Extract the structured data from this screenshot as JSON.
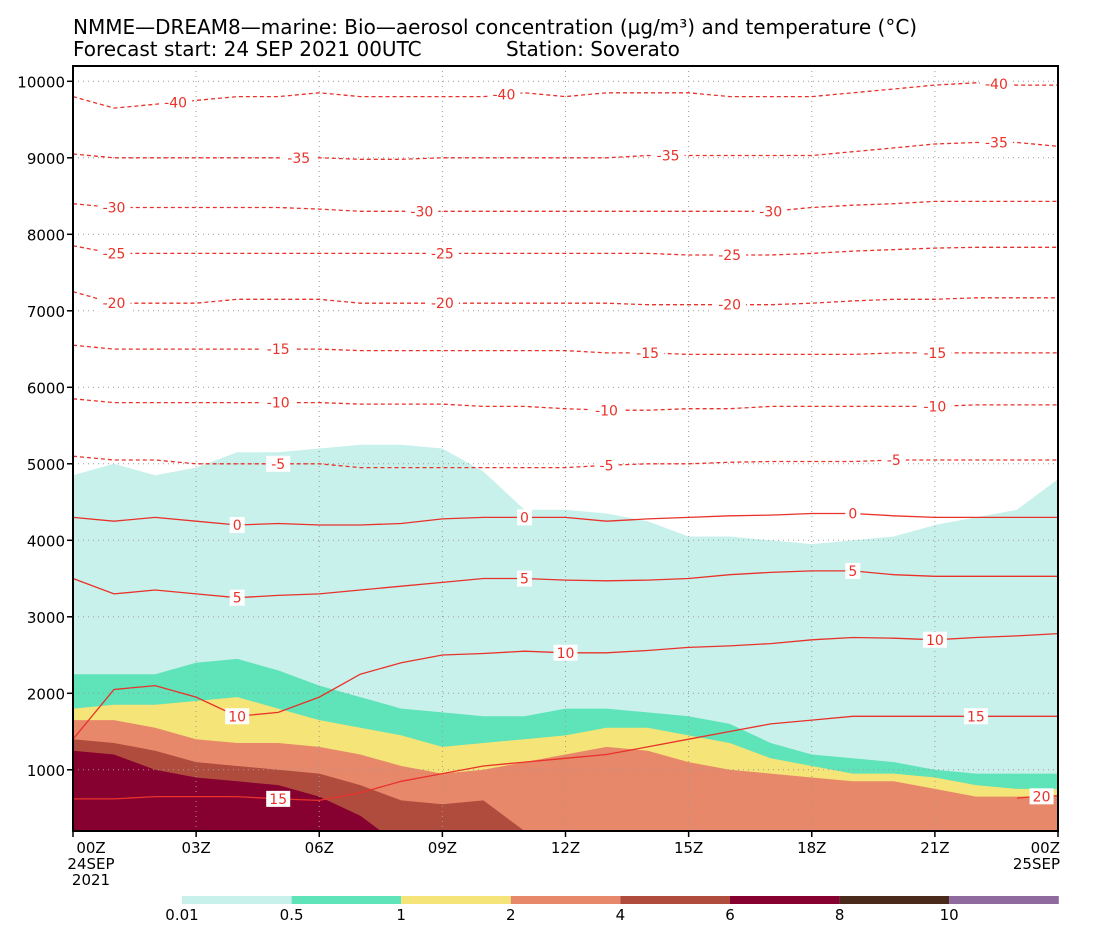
{
  "header": {
    "title_line1": "NMME—DREAM8—marine: Bio—aerosol concentration (µg/m³) and temperature (°C)",
    "title_line2_left": "Forecast start: 24 SEP 2021 00UTC",
    "title_line2_right": "Station: Soverato"
  },
  "colors": {
    "temperature_line": "#e8322a",
    "levels": [
      "#c8f1ec",
      "#5fe3b9",
      "#f5e477",
      "#e8886a",
      "#b04c3e",
      "#860030",
      "#4a2a1a",
      "#8f6a9e"
    ]
  },
  "chart_data": {
    "type": "area",
    "ylim": [
      200,
      10200
    ],
    "yticks": [
      1000,
      2000,
      3000,
      4000,
      5000,
      6000,
      7000,
      8000,
      9000,
      10000
    ],
    "ytick_labels": [
      "1000",
      "2000",
      "3000",
      "4000",
      "5000",
      "6000",
      "7000",
      "8000",
      "9000",
      "10000"
    ],
    "xlim": [
      0,
      24
    ],
    "xticks": [
      0,
      3,
      6,
      9,
      12,
      15,
      18,
      21,
      24
    ],
    "xtick_labels": [
      [
        "00Z",
        "24SEP",
        "2021"
      ],
      [
        "03Z"
      ],
      [
        "06Z"
      ],
      [
        "09Z"
      ],
      [
        "12Z"
      ],
      [
        "15Z"
      ],
      [
        "18Z"
      ],
      [
        "21Z"
      ],
      [
        "00Z",
        "25SEP"
      ]
    ],
    "grid": true,
    "legend": {
      "position": "bottom",
      "labels": [
        "0.01",
        "0.5",
        "1",
        "2",
        "4",
        "6",
        "8",
        "10"
      ],
      "values": [
        0.01,
        0.5,
        1,
        2,
        4,
        6,
        8,
        10
      ]
    },
    "concentration_top_heights_m": [
      {
        "level": 0.01,
        "x": [
          0,
          1,
          2,
          3,
          4,
          5,
          6,
          7,
          8,
          9,
          10,
          11,
          12,
          13,
          14,
          15,
          16,
          17,
          18,
          19,
          20,
          21,
          22,
          23,
          24
        ],
        "y": [
          4850,
          5000,
          4850,
          4950,
          5150,
          5150,
          5200,
          5250,
          5250,
          5200,
          4900,
          4400,
          4400,
          4350,
          4250,
          4050,
          4050,
          4000,
          3950,
          4000,
          4050,
          4200,
          4300,
          4400,
          4800
        ]
      },
      {
        "level": 0.5,
        "x": [
          0,
          1,
          2,
          3,
          4,
          5,
          6,
          7,
          8,
          9,
          10,
          11,
          12,
          13,
          14,
          15,
          16,
          17,
          18,
          19,
          20,
          21,
          22,
          23,
          24
        ],
        "y": [
          2250,
          2250,
          2250,
          2400,
          2450,
          2300,
          2100,
          1950,
          1800,
          1750,
          1700,
          1700,
          1800,
          1800,
          1750,
          1700,
          1600,
          1350,
          1200,
          1150,
          1100,
          1000,
          950,
          950,
          950
        ]
      },
      {
        "level": 1,
        "x": [
          0,
          1,
          2,
          3,
          4,
          5,
          6,
          7,
          8,
          9,
          10,
          11,
          12,
          13,
          14,
          15,
          16,
          17,
          18,
          19,
          20,
          21,
          22,
          23,
          24
        ],
        "y": [
          1800,
          1850,
          1850,
          1900,
          1950,
          1800,
          1650,
          1550,
          1450,
          1300,
          1350,
          1400,
          1450,
          1550,
          1550,
          1450,
          1350,
          1150,
          1050,
          950,
          950,
          900,
          800,
          750,
          750
        ]
      },
      {
        "level": 2,
        "x": [
          0,
          1,
          2,
          3,
          4,
          5,
          6,
          7,
          8,
          9,
          10,
          11,
          12,
          13,
          14,
          15,
          16,
          17,
          18,
          19,
          20,
          21,
          22,
          23,
          24
        ],
        "y": [
          1650,
          1650,
          1550,
          1400,
          1350,
          1350,
          1300,
          1200,
          1050,
          950,
          1000,
          1100,
          1200,
          1300,
          1250,
          1100,
          1000,
          950,
          900,
          850,
          850,
          750,
          650,
          650,
          650
        ]
      },
      {
        "level": 4,
        "x": [
          0,
          1,
          2,
          3,
          4,
          5,
          6,
          7,
          8,
          9,
          10,
          11
        ],
        "y": [
          1400,
          1350,
          1250,
          1100,
          1050,
          1000,
          950,
          800,
          600,
          550,
          600,
          200
        ]
      },
      {
        "level": 6,
        "x": [
          0,
          1,
          2,
          3,
          4,
          5,
          6,
          7,
          7.5
        ],
        "y": [
          1250,
          1200,
          1000,
          900,
          850,
          800,
          650,
          400,
          200
        ]
      }
    ],
    "temperature_isotherms_celsius": [
      {
        "value": -40,
        "label": "-40",
        "style": "dashed",
        "y": [
          9800,
          9650,
          9700,
          9750,
          9800,
          9800,
          9850,
          9800,
          9800,
          9800,
          9800,
          9850,
          9800,
          9850,
          9850,
          9850,
          9800,
          9800,
          9800,
          9850,
          9900,
          9950,
          9980,
          9950,
          9950
        ]
      },
      {
        "value": -35,
        "label": "-35",
        "style": "dashed",
        "y": [
          9050,
          9000,
          9000,
          9000,
          9000,
          9000,
          9000,
          8980,
          8980,
          9000,
          9000,
          9000,
          9000,
          9000,
          9030,
          9030,
          9030,
          9030,
          9030,
          9080,
          9130,
          9180,
          9200,
          9200,
          9150
        ]
      },
      {
        "value": -30,
        "label": "-30",
        "style": "dashed",
        "y": [
          8400,
          8350,
          8350,
          8350,
          8350,
          8350,
          8330,
          8300,
          8300,
          8300,
          8300,
          8300,
          8300,
          8300,
          8300,
          8300,
          8300,
          8300,
          8350,
          8380,
          8400,
          8430,
          8430,
          8430,
          8430
        ]
      },
      {
        "value": -25,
        "label": "-25",
        "style": "dashed",
        "y": [
          7850,
          7750,
          7750,
          7750,
          7750,
          7750,
          7750,
          7750,
          7750,
          7750,
          7750,
          7750,
          7750,
          7750,
          7750,
          7730,
          7730,
          7730,
          7750,
          7780,
          7800,
          7820,
          7830,
          7830,
          7830
        ]
      },
      {
        "value": -20,
        "label": "-20",
        "style": "dashed",
        "y": [
          7250,
          7100,
          7100,
          7100,
          7150,
          7150,
          7150,
          7100,
          7100,
          7100,
          7100,
          7100,
          7100,
          7100,
          7080,
          7080,
          7080,
          7080,
          7100,
          7130,
          7150,
          7150,
          7170,
          7170,
          7170
        ]
      },
      {
        "value": -15,
        "label": "-15",
        "style": "dashed",
        "y": [
          6550,
          6500,
          6500,
          6500,
          6500,
          6500,
          6500,
          6480,
          6480,
          6480,
          6480,
          6480,
          6480,
          6450,
          6450,
          6430,
          6430,
          6430,
          6430,
          6430,
          6450,
          6450,
          6450,
          6450,
          6450
        ]
      },
      {
        "value": -10,
        "label": "-10",
        "style": "dashed",
        "y": [
          5850,
          5800,
          5800,
          5800,
          5800,
          5800,
          5800,
          5780,
          5780,
          5780,
          5750,
          5750,
          5720,
          5700,
          5700,
          5720,
          5720,
          5750,
          5750,
          5750,
          5750,
          5750,
          5770,
          5770,
          5770
        ]
      },
      {
        "value": -5,
        "label": "-5",
        "style": "dashed",
        "y": [
          5100,
          5050,
          5050,
          5000,
          5000,
          5000,
          5000,
          4950,
          4950,
          4950,
          4950,
          4950,
          4950,
          4980,
          5000,
          5000,
          5020,
          5030,
          5030,
          5030,
          5050,
          5050,
          5050,
          5050,
          5050
        ]
      },
      {
        "value": 0,
        "label": "0",
        "style": "solid",
        "y": [
          4300,
          4250,
          4300,
          4250,
          4200,
          4220,
          4200,
          4200,
          4220,
          4280,
          4300,
          4300,
          4300,
          4250,
          4280,
          4300,
          4320,
          4330,
          4350,
          4350,
          4320,
          4300,
          4300,
          4300,
          4300
        ]
      },
      {
        "value": 5,
        "label": "5",
        "style": "solid",
        "y": [
          3500,
          3300,
          3350,
          3300,
          3250,
          3280,
          3300,
          3350,
          3400,
          3450,
          3500,
          3500,
          3480,
          3470,
          3480,
          3500,
          3550,
          3580,
          3600,
          3600,
          3550,
          3530,
          3530,
          3530,
          3530
        ]
      },
      {
        "value": 10,
        "label": "10",
        "style": "solid",
        "y": [
          1400,
          2050,
          2100,
          1950,
          1700,
          1750,
          1950,
          2250,
          2400,
          2500,
          2520,
          2550,
          2530,
          2530,
          2560,
          2600,
          2620,
          2650,
          2700,
          2730,
          2720,
          2700,
          2730,
          2750,
          2780
        ]
      },
      {
        "value": 15,
        "label": "15",
        "style": "solid",
        "y": [
          620,
          620,
          650,
          650,
          650,
          620,
          600,
          700,
          850,
          950,
          1050,
          1100,
          1150,
          1200,
          1300,
          1400,
          1500,
          1600,
          1650,
          1700,
          1700,
          1700,
          1700,
          1700,
          1700
        ]
      },
      {
        "value": 20,
        "label": "20",
        "style": "solid",
        "x": [
          23,
          23.4,
          24
        ],
        "y": [
          630,
          650,
          660
        ]
      }
    ],
    "isotherm_label_positions": [
      {
        "label": "-40",
        "x": [
          2.5,
          10.5,
          22.5
        ]
      },
      {
        "label": "-35",
        "x": [
          5.5,
          14.5,
          22.5
        ]
      },
      {
        "label": "-30",
        "x": [
          1,
          8.5,
          17
        ]
      },
      {
        "label": "-25",
        "x": [
          1,
          9,
          16
        ]
      },
      {
        "label": "-20",
        "x": [
          1,
          9,
          16
        ]
      },
      {
        "label": "-15",
        "x": [
          5,
          14,
          21
        ]
      },
      {
        "label": "-10",
        "x": [
          5,
          13,
          21
        ]
      },
      {
        "label": "-5",
        "x": [
          5,
          13,
          20
        ]
      },
      {
        "label": "0",
        "x": [
          4,
          11,
          19
        ]
      },
      {
        "label": "5",
        "x": [
          4,
          11,
          19
        ]
      },
      {
        "label": "10",
        "x": [
          4,
          12,
          21
        ]
      },
      {
        "label": "15",
        "x": [
          5,
          22
        ]
      },
      {
        "label": "20",
        "x": [
          23.6
        ]
      }
    ]
  }
}
